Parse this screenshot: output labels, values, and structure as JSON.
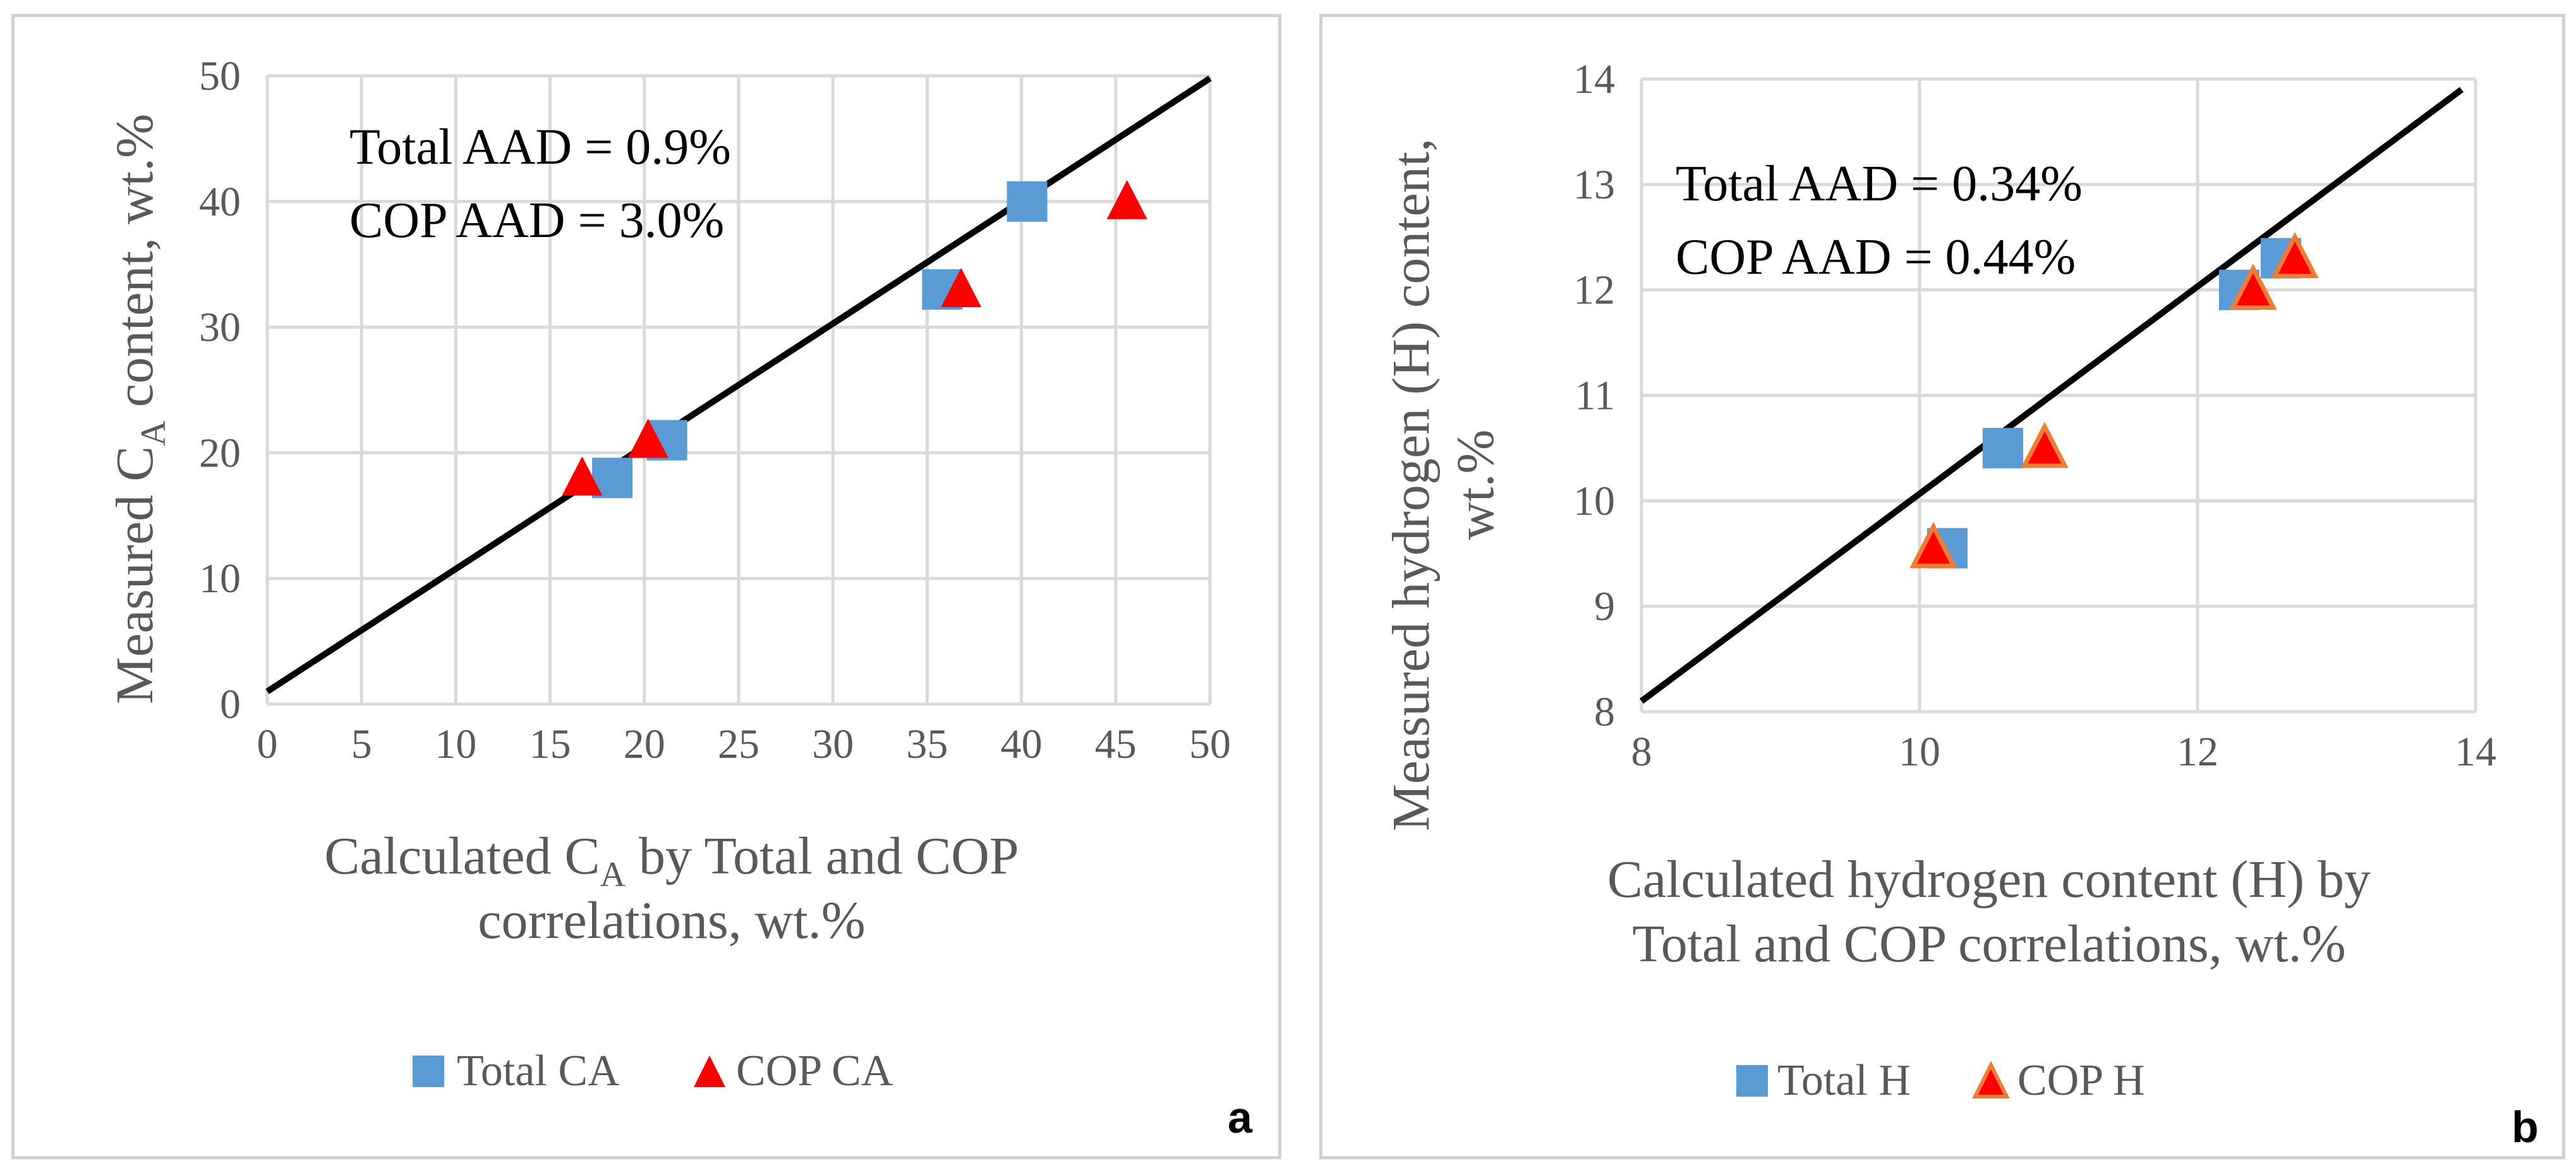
{
  "chart_data": [
    {
      "type": "scatter",
      "panel_label": "a",
      "xlabel_line1_pre": "Calculated C",
      "xlabel_sub": "A",
      "xlabel_line1_post": " by Total and COP",
      "xlabel_line2": "correlations, wt.%",
      "ylabel_pre": "Measured C",
      "ylabel_sub": "A",
      "ylabel_post": " content, wt.%",
      "xlim": [
        0,
        50
      ],
      "ylim": [
        0,
        50
      ],
      "xticks": [
        "0",
        "5",
        "10",
        "15",
        "20",
        "25",
        "30",
        "35",
        "40",
        "45",
        "50"
      ],
      "yticks": [
        "0",
        "10",
        "20",
        "30",
        "40",
        "50"
      ],
      "grid": true,
      "annotations": [
        "Total AAD = 0.9%",
        "COP AAD = 3.0%"
      ],
      "trend_line": {
        "x": [
          0,
          50
        ],
        "y": [
          1.0,
          49.8
        ]
      },
      "legend_position": "bottom-center",
      "series": [
        {
          "name": "Total CA",
          "marker": "square",
          "color": "#5b9bd5",
          "x": [
            18.3,
            21.2,
            35.8,
            40.3
          ],
          "y": [
            18.0,
            21.0,
            33.0,
            40.0
          ]
        },
        {
          "name": "COP CA",
          "marker": "triangle",
          "color": "#ff0000",
          "x": [
            16.7,
            20.2,
            36.8,
            45.6
          ],
          "y": [
            18.0,
            21.0,
            33.0,
            40.0
          ]
        }
      ]
    },
    {
      "type": "scatter",
      "panel_label": "b",
      "xlabel_line1": "Calculated hydrogen content (H) by",
      "xlabel_line2": "Total and COP correlations, wt.%",
      "ylabel_line1": "Measured hydrogen (H) content,",
      "ylabel_line2": "wt.%",
      "xlim": [
        8,
        14
      ],
      "ylim": [
        8,
        14
      ],
      "xticks": [
        "8",
        "10",
        "12",
        "14"
      ],
      "yticks": [
        "8",
        "9",
        "10",
        "11",
        "12",
        "13",
        "14"
      ],
      "grid": true,
      "annotations": [
        "Total AAD = 0.34%",
        "COP AAD = 0.44%"
      ],
      "trend_line": {
        "x": [
          8,
          13.9
        ],
        "y": [
          8.1,
          13.9
        ]
      },
      "legend_position": "bottom-center",
      "series": [
        {
          "name": "Total H",
          "marker": "square",
          "color": "#5b9bd5",
          "x": [
            10.2,
            10.6,
            12.3,
            12.6
          ],
          "y": [
            9.55,
            10.5,
            12.0,
            12.3
          ]
        },
        {
          "name": "COP H",
          "marker": "triangle",
          "color": "#ff0000",
          "edge": "#ed7d31",
          "x": [
            10.1,
            10.9,
            12.4,
            12.7
          ],
          "y": [
            9.55,
            10.5,
            12.0,
            12.3
          ]
        }
      ]
    }
  ]
}
